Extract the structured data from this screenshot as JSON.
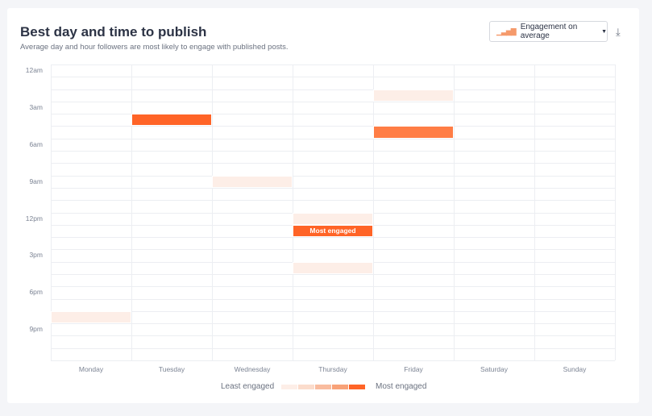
{
  "header": {
    "title": "Best day and time to publish",
    "subtitle": "Average day and hour followers are most likely to engage with published posts.",
    "metric_select": "Engagement on average",
    "metric_icon": "bar-chart-icon",
    "download_icon": "download-icon"
  },
  "y_labels": [
    {
      "hour": 0,
      "label": "12am"
    },
    {
      "hour": 3,
      "label": "3am"
    },
    {
      "hour": 6,
      "label": "6am"
    },
    {
      "hour": 9,
      "label": "9am"
    },
    {
      "hour": 12,
      "label": "12pm"
    },
    {
      "hour": 15,
      "label": "3pm"
    },
    {
      "hour": 18,
      "label": "6pm"
    },
    {
      "hour": 21,
      "label": "9pm"
    }
  ],
  "days": [
    "Monday",
    "Tuesday",
    "Wednesday",
    "Thursday",
    "Friday",
    "Saturday",
    "Sunday"
  ],
  "cells": [
    {
      "day": "Friday",
      "hour": 2,
      "level": 1
    },
    {
      "day": "Tuesday",
      "hour": 4,
      "level": 5
    },
    {
      "day": "Friday",
      "hour": 5,
      "level": 4
    },
    {
      "day": "Wednesday",
      "hour": 9,
      "level": 1
    },
    {
      "day": "Thursday",
      "hour": 12,
      "level": 1
    },
    {
      "day": "Thursday",
      "hour": 13,
      "level": 5,
      "label": "Most engaged"
    },
    {
      "day": "Thursday",
      "hour": 16,
      "level": 1
    },
    {
      "day": "Monday",
      "hour": 20,
      "level": 1
    }
  ],
  "level_colors": [
    "#fdeee7",
    "#fbdccc",
    "#f9bc9f",
    "#f8a278",
    "#ff6427"
  ],
  "level4_color": "#ff7d45",
  "legend": {
    "least": "Least engaged",
    "most": "Most engaged"
  }
}
